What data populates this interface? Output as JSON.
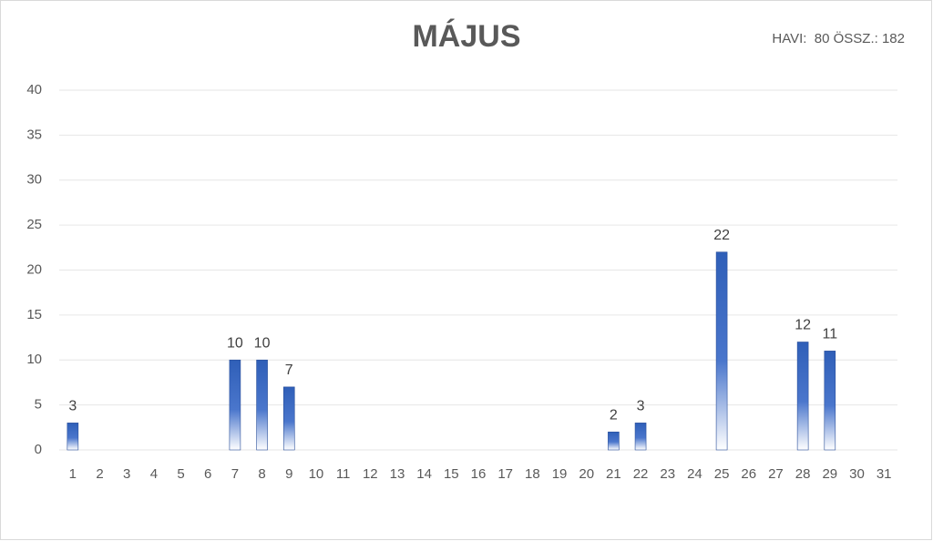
{
  "chart_data": {
    "type": "bar",
    "title": "MÁJUS",
    "annotation": "HAVI:  80 ÖSSZ.: 182",
    "categories": [
      "1",
      "2",
      "3",
      "4",
      "5",
      "6",
      "7",
      "8",
      "9",
      "10",
      "11",
      "12",
      "13",
      "14",
      "15",
      "16",
      "17",
      "18",
      "19",
      "20",
      "21",
      "22",
      "23",
      "24",
      "25",
      "26",
      "27",
      "28",
      "29",
      "30",
      "31"
    ],
    "values": [
      3,
      null,
      null,
      null,
      null,
      null,
      10,
      10,
      7,
      null,
      null,
      null,
      null,
      null,
      null,
      null,
      null,
      null,
      null,
      null,
      2,
      3,
      null,
      null,
      22,
      null,
      null,
      12,
      11,
      null,
      null
    ],
    "color": "#3a66c0",
    "ylim": [
      0,
      40
    ],
    "yticks": [
      0,
      5,
      10,
      15,
      20,
      25,
      30,
      35,
      40
    ],
    "grid": true
  }
}
